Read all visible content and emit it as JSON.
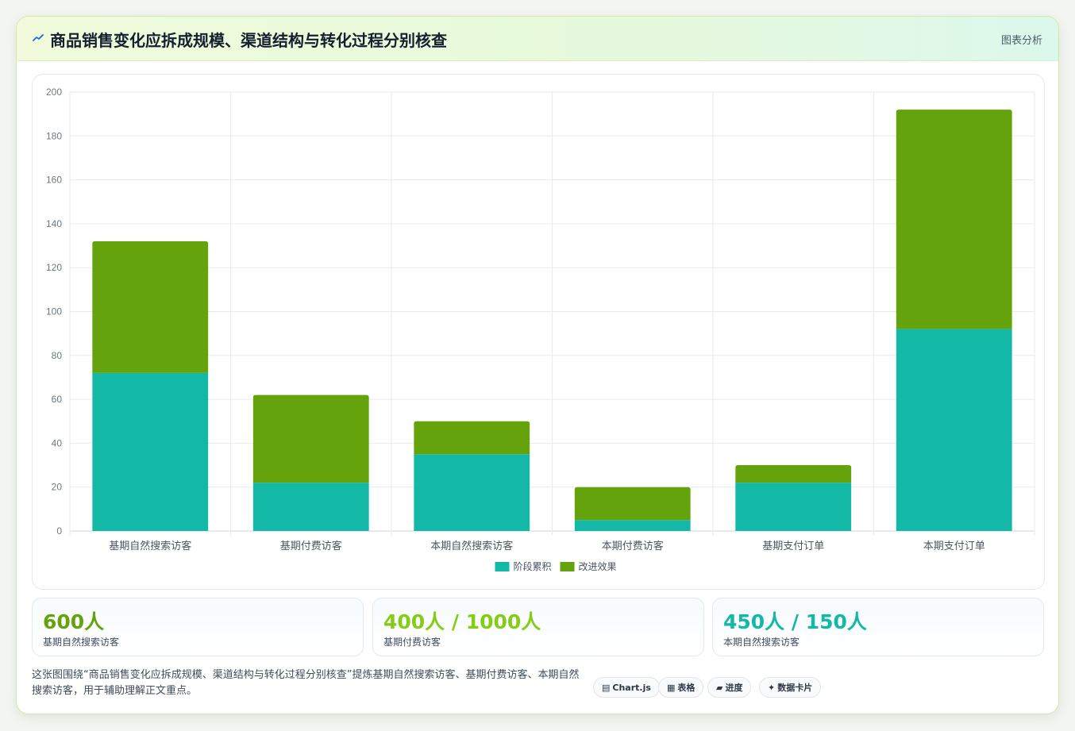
{
  "header": {
    "title": "商品销售变化应拆成规模、渠道结构与转化过程分别核查",
    "tag": "图表分析",
    "icon": "trend-line-icon"
  },
  "colors": {
    "series_1": "#14b8a6",
    "series_2": "#65a30d",
    "stat_green": "#65a30d",
    "stat_lime": "#84cc16",
    "stat_teal": "#14b8a6"
  },
  "chart_data": {
    "type": "bar",
    "stacked": true,
    "categories": [
      "基期自然搜索访客",
      "基期付费访客",
      "本期自然搜索访客",
      "本期付费访客",
      "基期支付订单",
      "本期支付订单"
    ],
    "series": [
      {
        "name": "阶段累积",
        "values": [
          72,
          22,
          35,
          5,
          22,
          92
        ]
      },
      {
        "name": "改进效果",
        "values": [
          60,
          40,
          15,
          15,
          8,
          100
        ]
      }
    ],
    "ylim": [
      0,
      200
    ],
    "yticks": [
      "0",
      "20",
      "40",
      "60",
      "80",
      "100",
      "120",
      "140",
      "160",
      "180",
      "200"
    ],
    "grid": true,
    "legend_position": "bottom"
  },
  "stats": [
    {
      "value": "600人",
      "label": "基期自然搜索访客"
    },
    {
      "value": "400人 / 1000人",
      "label": "基期付费访客"
    },
    {
      "value": "450人 / 150人",
      "label": "本期自然搜索访客"
    }
  ],
  "footer": {
    "description": "这张图围绕“商品销售变化应拆成规模、渠道结构与转化过程分别核查”提炼基期自然搜索访客、基期付费访客、本期自然搜索访客，用于辅助理解正文重点。",
    "chips": [
      {
        "label": "Chart.js",
        "icon": "chart-icon"
      },
      {
        "label": "表格",
        "icon": "table-icon"
      },
      {
        "label": "进度",
        "icon": "progress-icon"
      },
      {
        "label": "数据卡片",
        "icon": "sparkle-icon"
      }
    ]
  }
}
